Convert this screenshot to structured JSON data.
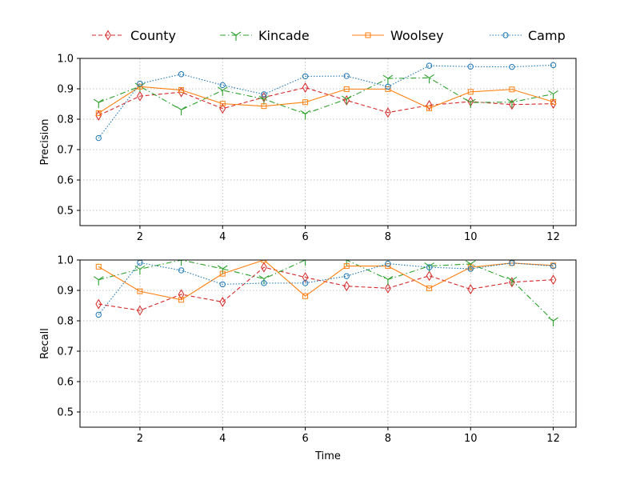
{
  "chart_data": {
    "type": "line",
    "legend": {
      "placement": "top",
      "entries": [
        "County",
        "Kincade",
        "Woolsey",
        "Camp"
      ]
    },
    "x": [
      1,
      2,
      3,
      4,
      5,
      6,
      7,
      8,
      9,
      10,
      11,
      12
    ],
    "xlabel": "Time",
    "xlim": [
      0.55,
      12.55
    ],
    "xticks": [
      2,
      4,
      6,
      8,
      10,
      12
    ],
    "grid": true,
    "series_styles": {
      "County": {
        "color": "#d62728",
        "marker": "thin-diamond",
        "linestyle": "dashed"
      },
      "Kincade": {
        "color": "#2ca02c",
        "marker": "tri-down",
        "linestyle": "dashdot"
      },
      "Woolsey": {
        "color": "#ff7f0e",
        "marker": "square",
        "linestyle": "solid"
      },
      "Camp": {
        "color": "#1f77b4",
        "marker": "circle",
        "linestyle": "dotted"
      }
    },
    "panels": [
      {
        "ylabel": "Precision",
        "ylim": [
          0.45,
          1.0
        ],
        "yticks": [
          "0.5",
          "0.6",
          "0.7",
          "0.8",
          "0.9",
          "1.0"
        ],
        "series": [
          {
            "name": "County",
            "values": [
              0.812,
              0.876,
              0.889,
              0.835,
              0.872,
              0.904,
              0.862,
              0.822,
              0.846,
              0.858,
              0.848,
              0.851
            ]
          },
          {
            "name": "Kincade",
            "values": [
              0.855,
              0.908,
              0.831,
              0.895,
              0.866,
              0.818,
              0.866,
              0.934,
              0.936,
              0.855,
              0.856,
              0.883
            ]
          },
          {
            "name": "Woolsey",
            "values": [
              0.82,
              0.907,
              0.896,
              0.851,
              0.843,
              0.856,
              0.899,
              0.899,
              0.836,
              0.89,
              0.898,
              0.857
            ]
          },
          {
            "name": "Camp",
            "values": [
              0.738,
              0.917,
              0.948,
              0.912,
              0.882,
              0.941,
              0.942,
              0.907,
              0.976,
              0.973,
              0.972,
              0.978
            ]
          }
        ]
      },
      {
        "ylabel": "Recall",
        "ylim": [
          0.45,
          1.0
        ],
        "yticks": [
          "0.5",
          "0.6",
          "0.7",
          "0.8",
          "0.9",
          "1.0"
        ],
        "series": [
          {
            "name": "County",
            "values": [
              0.855,
              0.834,
              0.887,
              0.862,
              0.976,
              0.943,
              0.914,
              0.907,
              0.948,
              0.904,
              0.927,
              0.935
            ]
          },
          {
            "name": "Kincade",
            "values": [
              0.935,
              0.97,
              1.0,
              0.971,
              0.938,
              1.0,
              1.0,
              0.936,
              0.98,
              0.987,
              0.933,
              0.8
            ]
          },
          {
            "name": "Woolsey",
            "values": [
              0.978,
              0.897,
              0.869,
              0.955,
              1.0,
              0.881,
              0.98,
              0.98,
              0.907,
              0.976,
              0.99,
              0.982
            ]
          },
          {
            "name": "Camp",
            "values": [
              0.82,
              0.991,
              0.966,
              0.92,
              0.924,
              0.924,
              0.947,
              0.988,
              0.976,
              0.971,
              0.99,
              0.98
            ]
          }
        ]
      }
    ]
  }
}
